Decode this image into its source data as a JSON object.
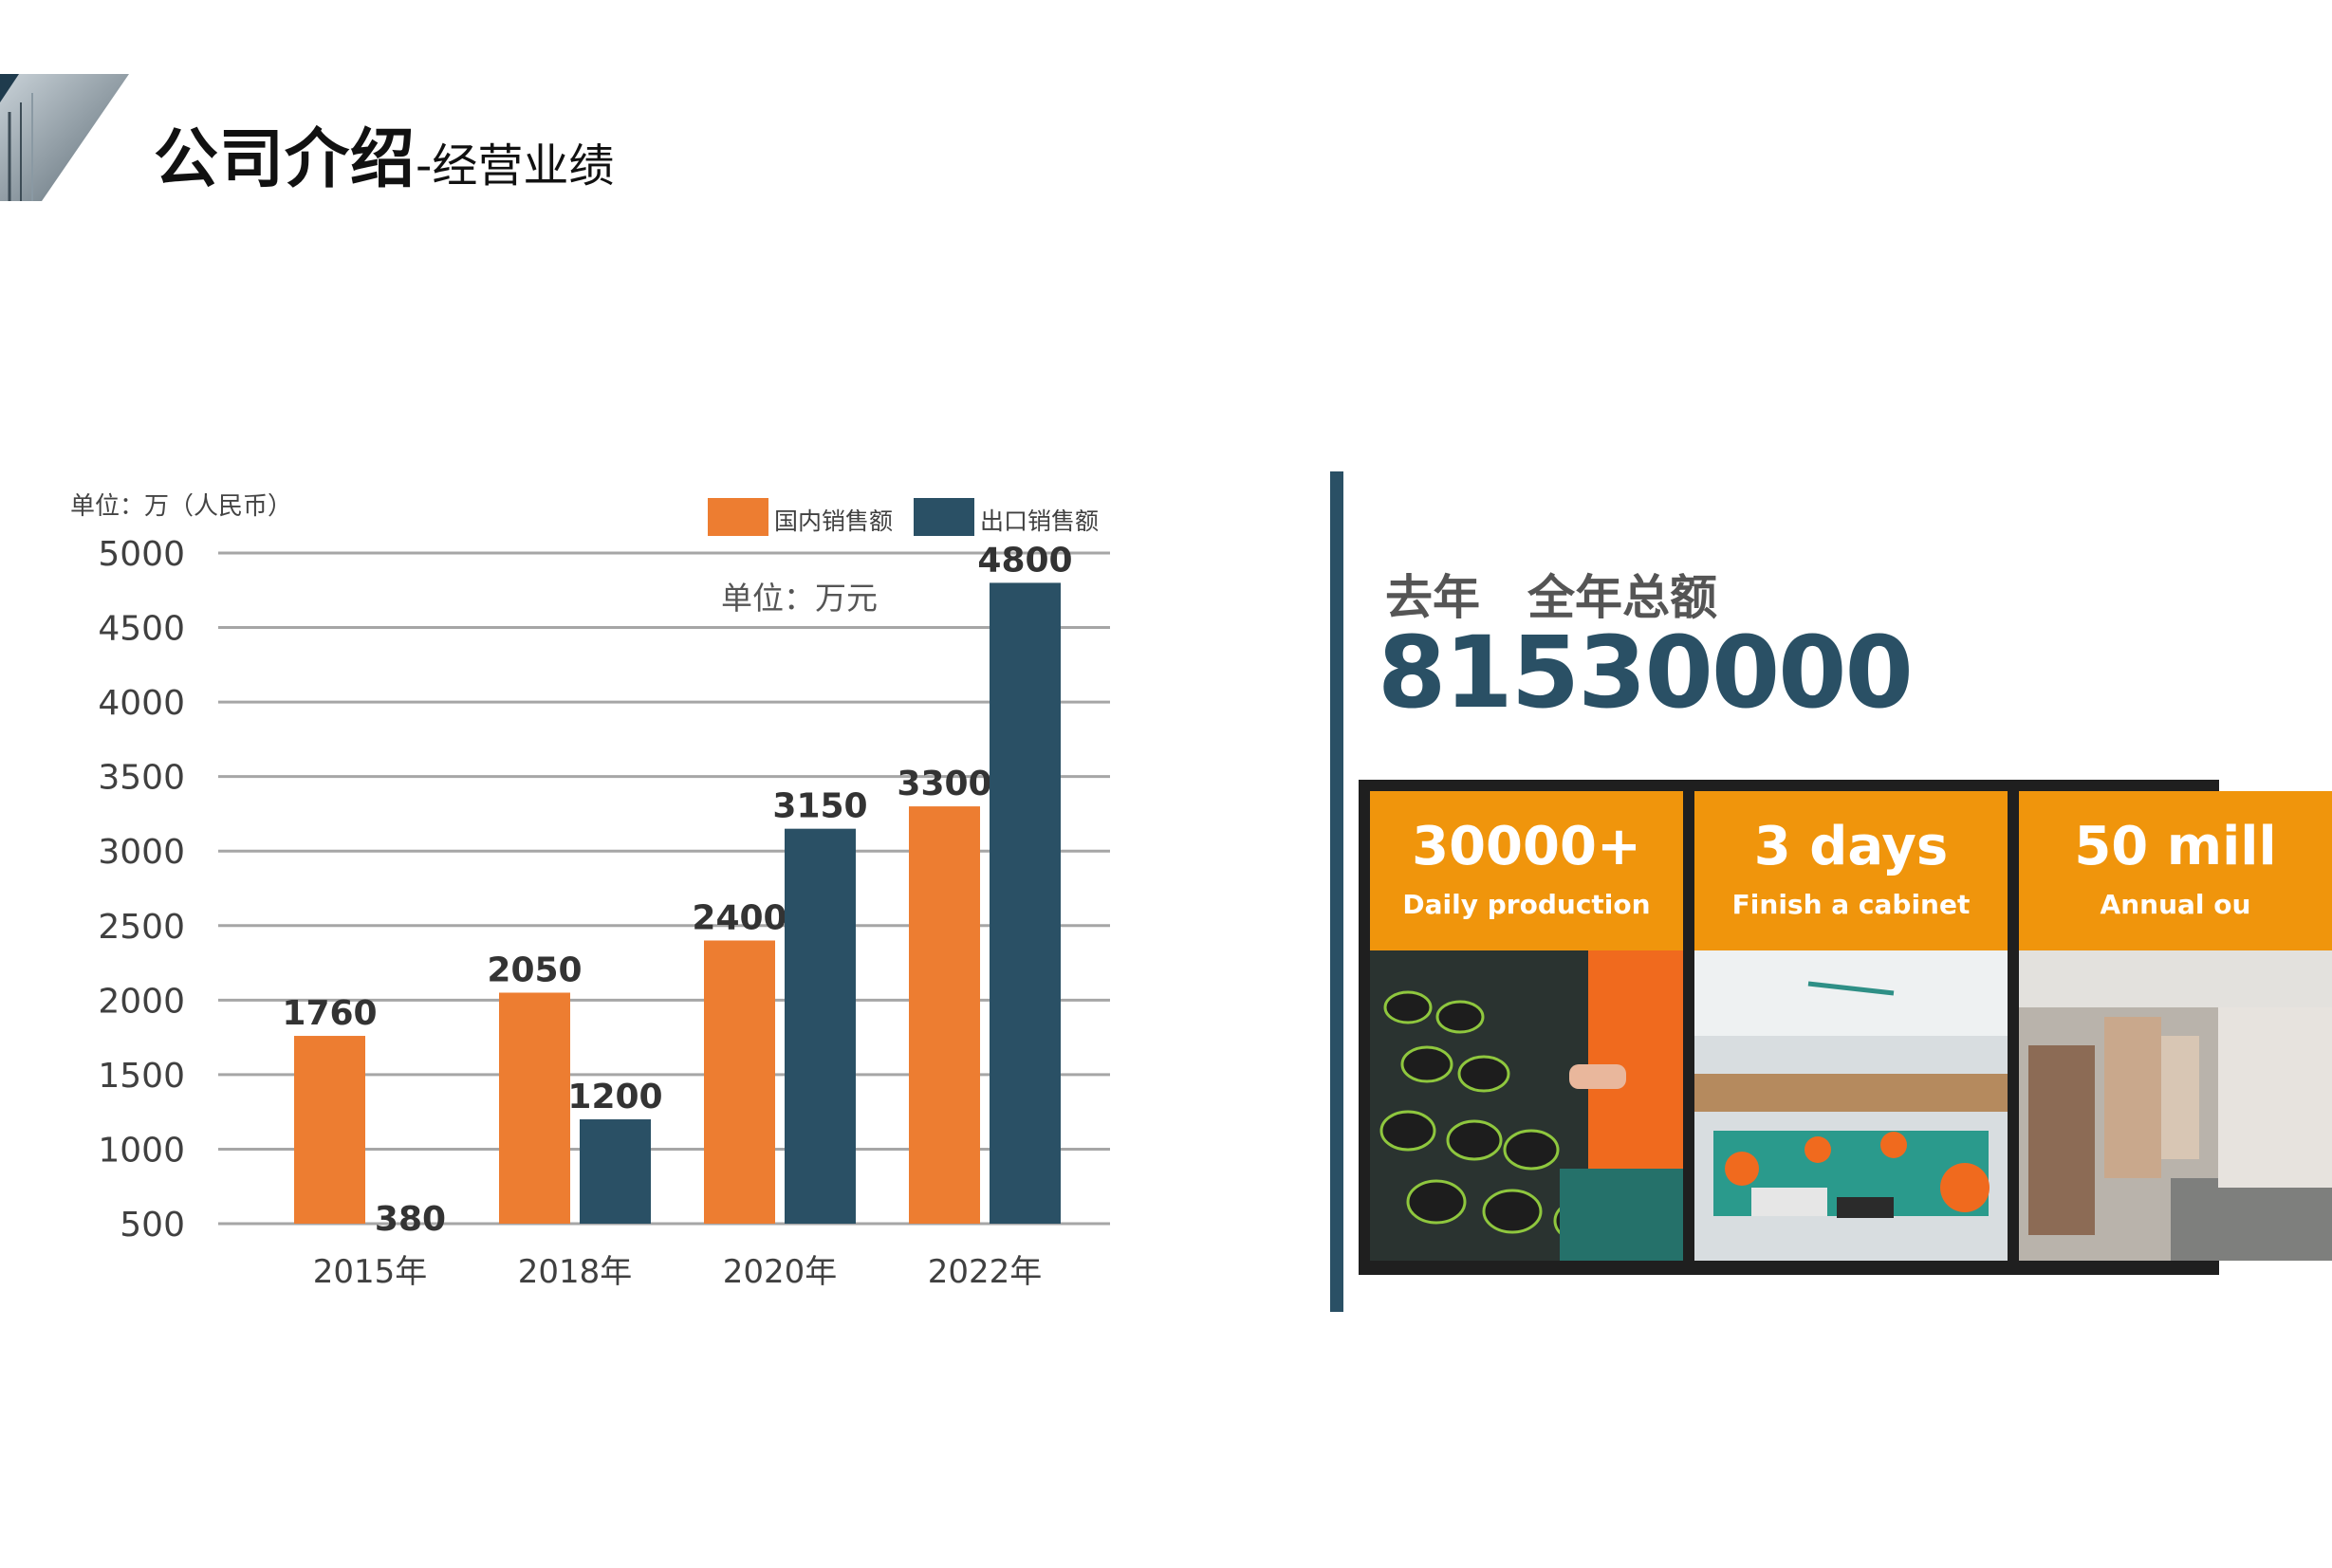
{
  "page": {
    "title_main": "公司介绍",
    "title_sub": "-经营业绩"
  },
  "chart_data": {
    "type": "bar",
    "unit_top": "单位：万（人民币）",
    "unit_inner": "单位：万元",
    "categories": [
      "2015年",
      "2018年",
      "2020年",
      "2022年"
    ],
    "series": [
      {
        "name": "国内销售额",
        "color": "#ed7d31",
        "values": [
          1760,
          2050,
          2400,
          3300
        ]
      },
      {
        "name": "出口销售额",
        "color": "#2a5065",
        "values": [
          380,
          1200,
          3150,
          4800
        ]
      }
    ],
    "ylim": [
      500,
      5000
    ],
    "yticks": [
      500,
      1000,
      1500,
      2000,
      2500,
      3000,
      3500,
      4000,
      4500,
      5000
    ],
    "grid": true,
    "legend": "top-right"
  },
  "summary": {
    "label": "去年　全年总额",
    "value": "81530000"
  },
  "cards": [
    {
      "big": "30000+",
      "small": "Daily production"
    },
    {
      "big": "3 days",
      "small": "Finish a cabinet"
    },
    {
      "big": "50 mill",
      "small": "Annual ou"
    }
  ]
}
